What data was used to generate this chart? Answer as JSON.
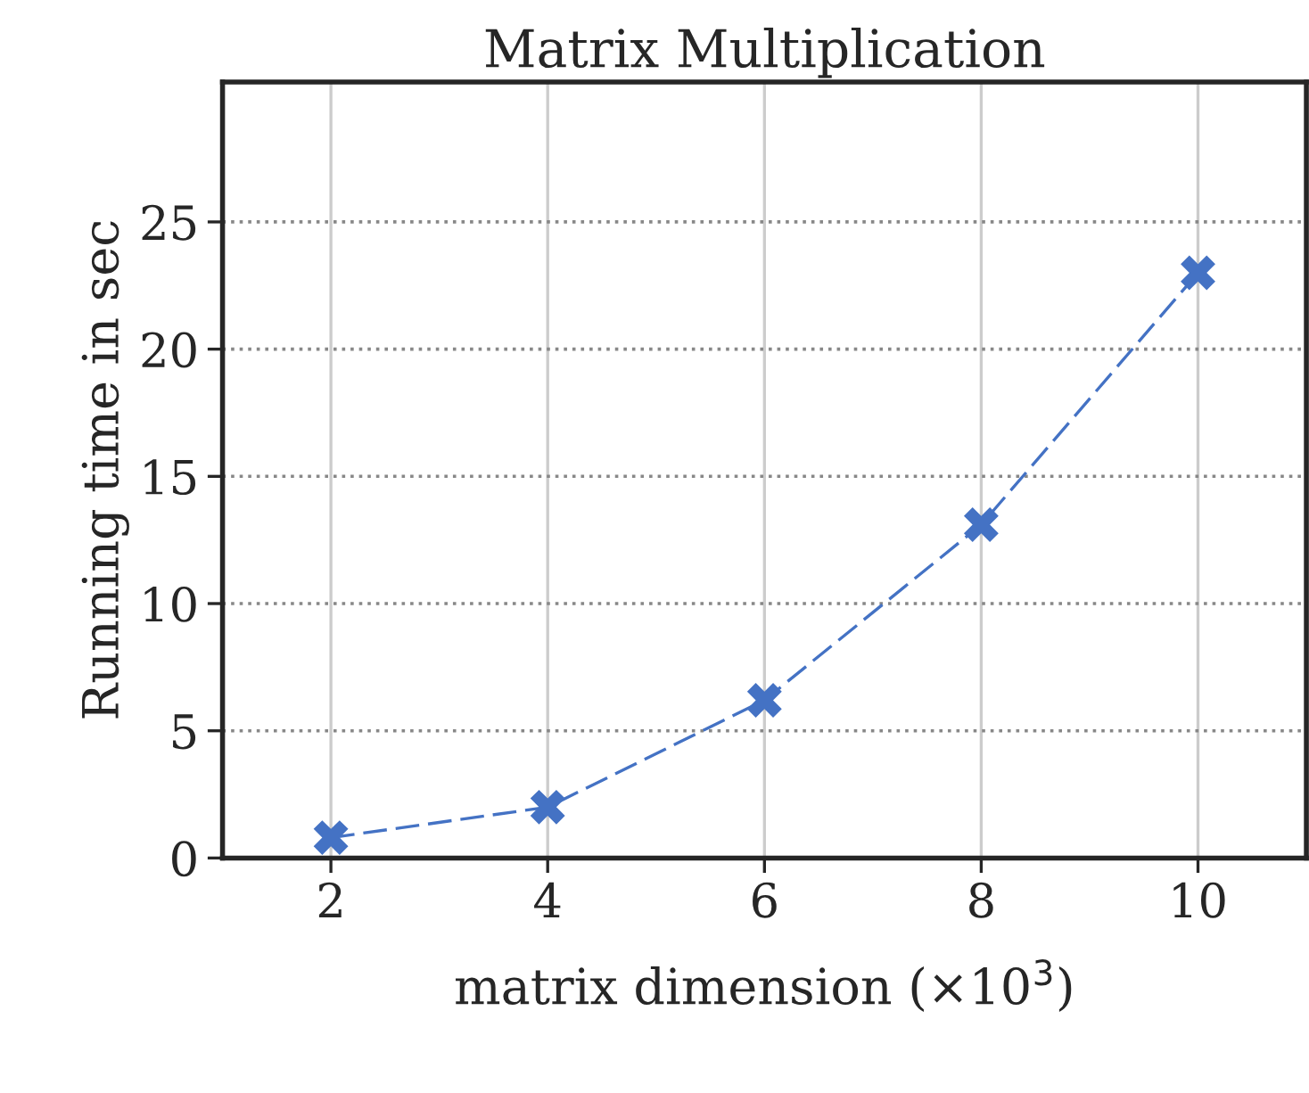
{
  "chart_data": {
    "type": "line",
    "title": "Matrix Multiplication",
    "xlabel": "matrix dimension (×10$^{3}$)",
    "ylabel": "Running time in sec",
    "x": [
      2,
      4,
      6,
      8,
      10
    ],
    "series": [
      {
        "color": "#4472c4",
        "values": [
          0.8,
          2.0,
          6.2,
          13.1,
          23.0
        ]
      }
    ],
    "xlim": [
      1,
      11
    ],
    "ylim": [
      0,
      30.5
    ],
    "xticks": [
      2,
      4,
      6,
      8,
      10
    ],
    "yticks": [
      0,
      5,
      10,
      15,
      20,
      25
    ],
    "grid": true,
    "marker": "cross",
    "line_style": "dashed",
    "legend": false
  }
}
